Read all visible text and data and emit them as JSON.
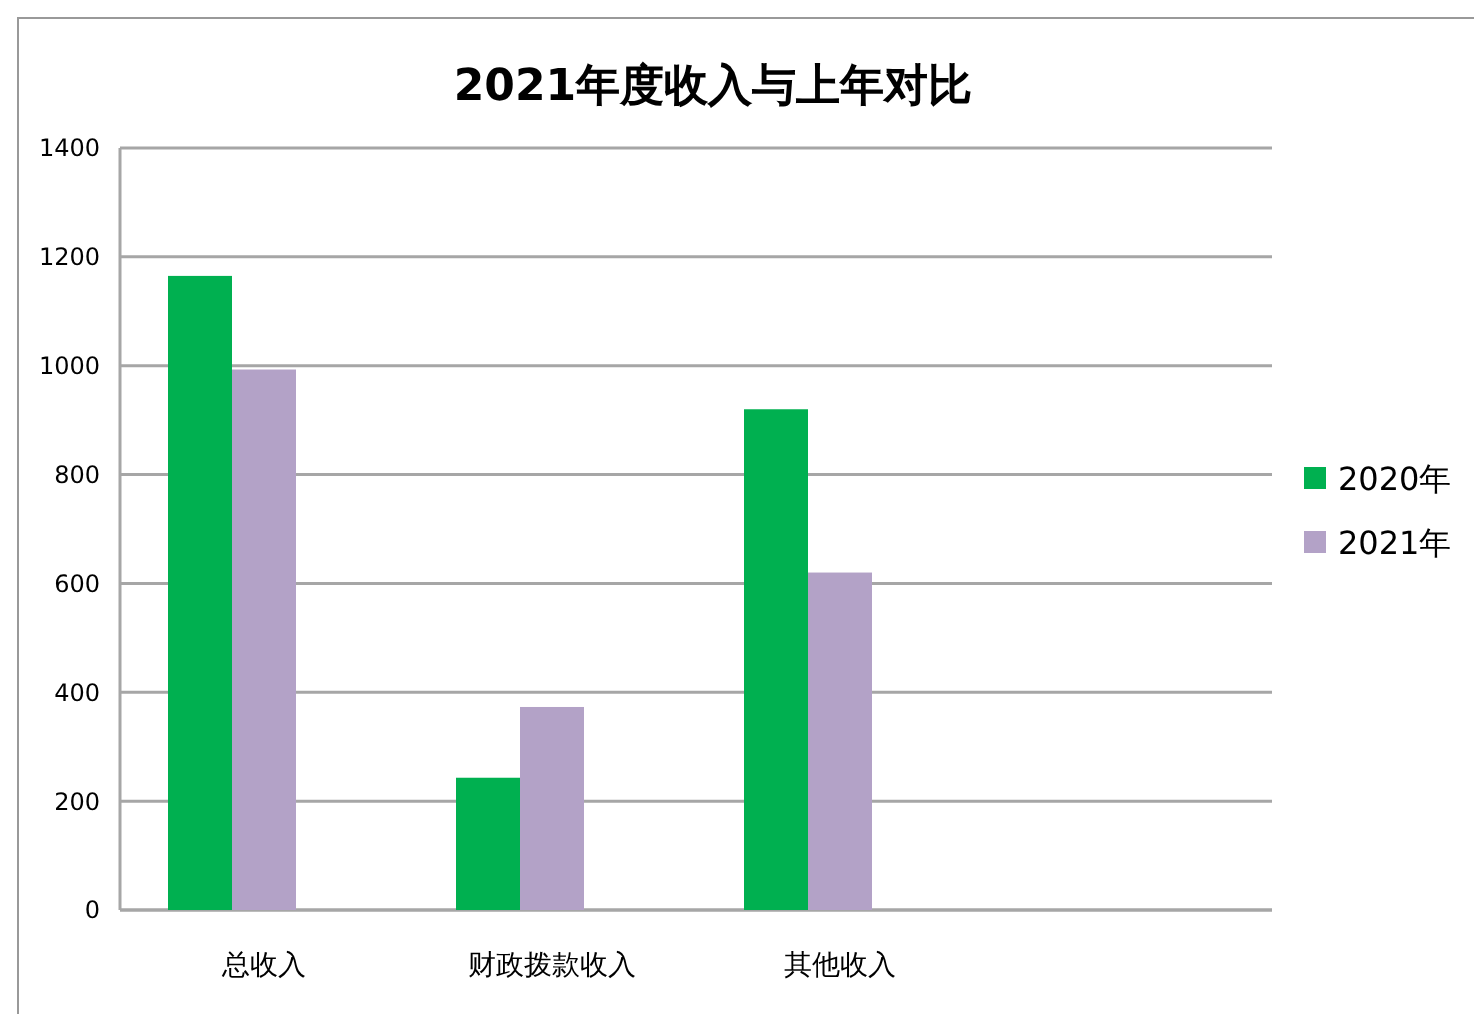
{
  "chart_data": {
    "type": "bar",
    "title": "2021年度收入与上年对比",
    "categories": [
      "总收入",
      "财政拨款收入",
      "其他收入",
      null
    ],
    "series": [
      {
        "name": "2020年",
        "color": "#00b050",
        "values": [
          1165,
          243,
          920,
          null
        ]
      },
      {
        "name": "2021年",
        "color": "#b3a2c7",
        "values": [
          993,
          373,
          620,
          null
        ]
      }
    ],
    "ylim": [
      0,
      1400
    ],
    "yticks": [
      0,
      200,
      400,
      600,
      800,
      1000,
      1200,
      1400
    ],
    "grid": "y",
    "legend": "right"
  }
}
